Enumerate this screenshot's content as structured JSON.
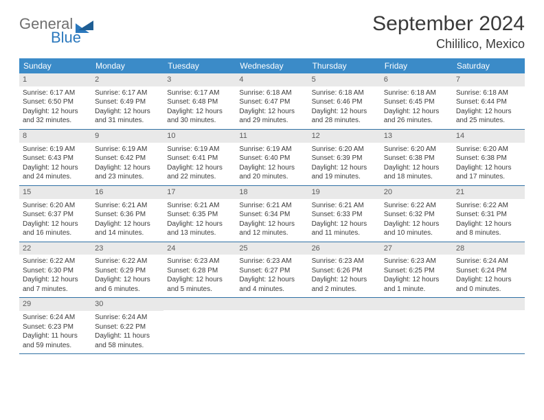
{
  "logo": {
    "word1": "General",
    "word2": "Blue"
  },
  "title": "September 2024",
  "location": "Chililico, Mexico",
  "header_bg": "#3b8bc8",
  "weekday_text_color": "#ffffff",
  "daynum_bg": "#e9e9e9",
  "rule_color": "#2d6fa3",
  "weekdays": [
    "Sunday",
    "Monday",
    "Tuesday",
    "Wednesday",
    "Thursday",
    "Friday",
    "Saturday"
  ],
  "weeks": [
    [
      {
        "n": "1",
        "sr": "Sunrise: 6:17 AM",
        "ss": "Sunset: 6:50 PM",
        "d1": "Daylight: 12 hours",
        "d2": "and 32 minutes."
      },
      {
        "n": "2",
        "sr": "Sunrise: 6:17 AM",
        "ss": "Sunset: 6:49 PM",
        "d1": "Daylight: 12 hours",
        "d2": "and 31 minutes."
      },
      {
        "n": "3",
        "sr": "Sunrise: 6:17 AM",
        "ss": "Sunset: 6:48 PM",
        "d1": "Daylight: 12 hours",
        "d2": "and 30 minutes."
      },
      {
        "n": "4",
        "sr": "Sunrise: 6:18 AM",
        "ss": "Sunset: 6:47 PM",
        "d1": "Daylight: 12 hours",
        "d2": "and 29 minutes."
      },
      {
        "n": "5",
        "sr": "Sunrise: 6:18 AM",
        "ss": "Sunset: 6:46 PM",
        "d1": "Daylight: 12 hours",
        "d2": "and 28 minutes."
      },
      {
        "n": "6",
        "sr": "Sunrise: 6:18 AM",
        "ss": "Sunset: 6:45 PM",
        "d1": "Daylight: 12 hours",
        "d2": "and 26 minutes."
      },
      {
        "n": "7",
        "sr": "Sunrise: 6:18 AM",
        "ss": "Sunset: 6:44 PM",
        "d1": "Daylight: 12 hours",
        "d2": "and 25 minutes."
      }
    ],
    [
      {
        "n": "8",
        "sr": "Sunrise: 6:19 AM",
        "ss": "Sunset: 6:43 PM",
        "d1": "Daylight: 12 hours",
        "d2": "and 24 minutes."
      },
      {
        "n": "9",
        "sr": "Sunrise: 6:19 AM",
        "ss": "Sunset: 6:42 PM",
        "d1": "Daylight: 12 hours",
        "d2": "and 23 minutes."
      },
      {
        "n": "10",
        "sr": "Sunrise: 6:19 AM",
        "ss": "Sunset: 6:41 PM",
        "d1": "Daylight: 12 hours",
        "d2": "and 22 minutes."
      },
      {
        "n": "11",
        "sr": "Sunrise: 6:19 AM",
        "ss": "Sunset: 6:40 PM",
        "d1": "Daylight: 12 hours",
        "d2": "and 20 minutes."
      },
      {
        "n": "12",
        "sr": "Sunrise: 6:20 AM",
        "ss": "Sunset: 6:39 PM",
        "d1": "Daylight: 12 hours",
        "d2": "and 19 minutes."
      },
      {
        "n": "13",
        "sr": "Sunrise: 6:20 AM",
        "ss": "Sunset: 6:38 PM",
        "d1": "Daylight: 12 hours",
        "d2": "and 18 minutes."
      },
      {
        "n": "14",
        "sr": "Sunrise: 6:20 AM",
        "ss": "Sunset: 6:38 PM",
        "d1": "Daylight: 12 hours",
        "d2": "and 17 minutes."
      }
    ],
    [
      {
        "n": "15",
        "sr": "Sunrise: 6:20 AM",
        "ss": "Sunset: 6:37 PM",
        "d1": "Daylight: 12 hours",
        "d2": "and 16 minutes."
      },
      {
        "n": "16",
        "sr": "Sunrise: 6:21 AM",
        "ss": "Sunset: 6:36 PM",
        "d1": "Daylight: 12 hours",
        "d2": "and 14 minutes."
      },
      {
        "n": "17",
        "sr": "Sunrise: 6:21 AM",
        "ss": "Sunset: 6:35 PM",
        "d1": "Daylight: 12 hours",
        "d2": "and 13 minutes."
      },
      {
        "n": "18",
        "sr": "Sunrise: 6:21 AM",
        "ss": "Sunset: 6:34 PM",
        "d1": "Daylight: 12 hours",
        "d2": "and 12 minutes."
      },
      {
        "n": "19",
        "sr": "Sunrise: 6:21 AM",
        "ss": "Sunset: 6:33 PM",
        "d1": "Daylight: 12 hours",
        "d2": "and 11 minutes."
      },
      {
        "n": "20",
        "sr": "Sunrise: 6:22 AM",
        "ss": "Sunset: 6:32 PM",
        "d1": "Daylight: 12 hours",
        "d2": "and 10 minutes."
      },
      {
        "n": "21",
        "sr": "Sunrise: 6:22 AM",
        "ss": "Sunset: 6:31 PM",
        "d1": "Daylight: 12 hours",
        "d2": "and 8 minutes."
      }
    ],
    [
      {
        "n": "22",
        "sr": "Sunrise: 6:22 AM",
        "ss": "Sunset: 6:30 PM",
        "d1": "Daylight: 12 hours",
        "d2": "and 7 minutes."
      },
      {
        "n": "23",
        "sr": "Sunrise: 6:22 AM",
        "ss": "Sunset: 6:29 PM",
        "d1": "Daylight: 12 hours",
        "d2": "and 6 minutes."
      },
      {
        "n": "24",
        "sr": "Sunrise: 6:23 AM",
        "ss": "Sunset: 6:28 PM",
        "d1": "Daylight: 12 hours",
        "d2": "and 5 minutes."
      },
      {
        "n": "25",
        "sr": "Sunrise: 6:23 AM",
        "ss": "Sunset: 6:27 PM",
        "d1": "Daylight: 12 hours",
        "d2": "and 4 minutes."
      },
      {
        "n": "26",
        "sr": "Sunrise: 6:23 AM",
        "ss": "Sunset: 6:26 PM",
        "d1": "Daylight: 12 hours",
        "d2": "and 2 minutes."
      },
      {
        "n": "27",
        "sr": "Sunrise: 6:23 AM",
        "ss": "Sunset: 6:25 PM",
        "d1": "Daylight: 12 hours",
        "d2": "and 1 minute."
      },
      {
        "n": "28",
        "sr": "Sunrise: 6:24 AM",
        "ss": "Sunset: 6:24 PM",
        "d1": "Daylight: 12 hours",
        "d2": "and 0 minutes."
      }
    ],
    [
      {
        "n": "29",
        "sr": "Sunrise: 6:24 AM",
        "ss": "Sunset: 6:23 PM",
        "d1": "Daylight: 11 hours",
        "d2": "and 59 minutes."
      },
      {
        "n": "30",
        "sr": "Sunrise: 6:24 AM",
        "ss": "Sunset: 6:22 PM",
        "d1": "Daylight: 11 hours",
        "d2": "and 58 minutes."
      },
      {
        "blank": true
      },
      {
        "blank": true
      },
      {
        "blank": true
      },
      {
        "blank": true
      },
      {
        "blank": true
      }
    ]
  ]
}
